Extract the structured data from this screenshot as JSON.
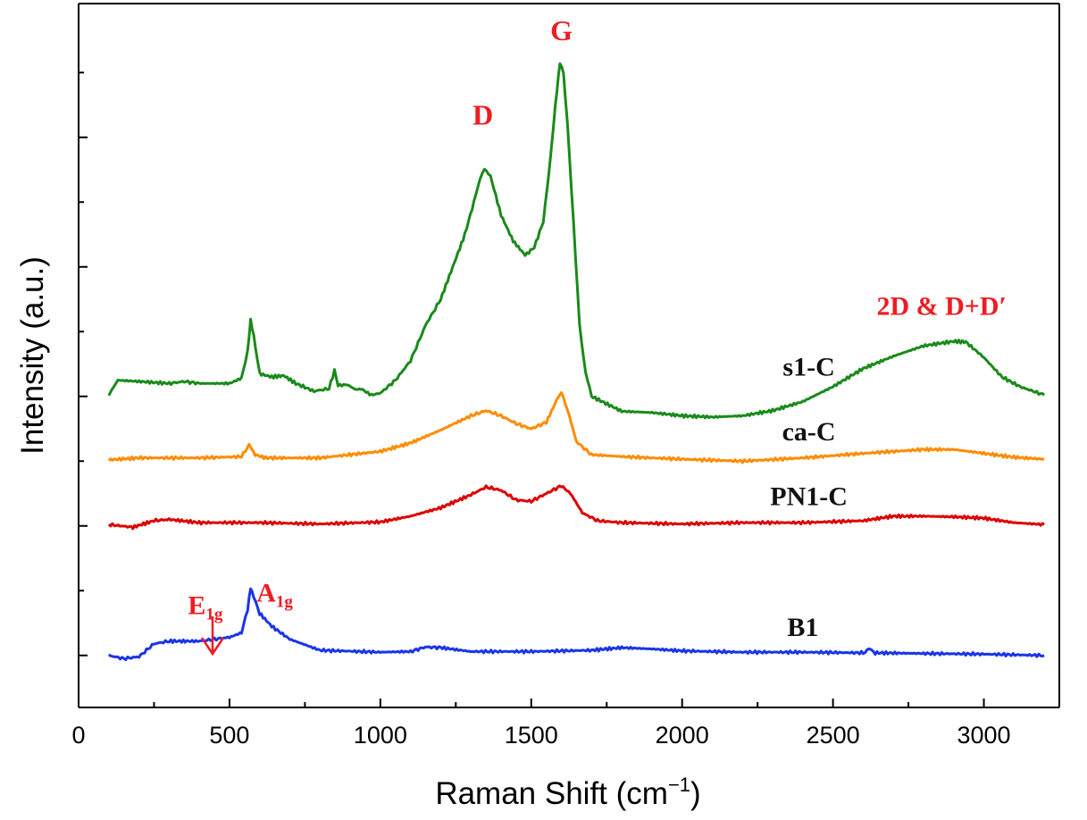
{
  "chart_data": {
    "type": "line",
    "xlabel": "Raman Shift (cm",
    "xlabel_sup": "−1",
    "xlabel_end": ")",
    "ylabel": "Intensity (a.u.)",
    "xlim": [
      0,
      3250
    ],
    "ylim": [
      0,
      1.0
    ],
    "x_ticks": [
      0,
      500,
      1000,
      1500,
      2000,
      2500,
      3000
    ],
    "y_ticks_shown": false,
    "grid": false,
    "legend": "none",
    "series": [
      {
        "name": "s1-C",
        "color": "#1a8a1a",
        "points": [
          [
            100,
            0.452
          ],
          [
            130,
            0.475
          ],
          [
            200,
            0.473
          ],
          [
            300,
            0.47
          ],
          [
            350,
            0.473
          ],
          [
            400,
            0.47
          ],
          [
            500,
            0.47
          ],
          [
            540,
            0.478
          ],
          [
            560,
            0.52
          ],
          [
            570,
            0.567
          ],
          [
            580,
            0.545
          ],
          [
            600,
            0.485
          ],
          [
            640,
            0.48
          ],
          [
            680,
            0.482
          ],
          [
            720,
            0.47
          ],
          [
            780,
            0.458
          ],
          [
            830,
            0.462
          ],
          [
            848,
            0.49
          ],
          [
            860,
            0.467
          ],
          [
            890,
            0.468
          ],
          [
            920,
            0.46
          ],
          [
            935,
            0.462
          ],
          [
            970,
            0.452
          ],
          [
            1000,
            0.455
          ],
          [
            1050,
            0.475
          ],
          [
            1100,
            0.505
          ],
          [
            1150,
            0.56
          ],
          [
            1200,
            0.6
          ],
          [
            1240,
            0.65
          ],
          [
            1280,
            0.7
          ],
          [
            1310,
            0.75
          ],
          [
            1330,
            0.785
          ],
          [
            1345,
            0.802
          ],
          [
            1365,
            0.79
          ],
          [
            1400,
            0.73
          ],
          [
            1440,
            0.69
          ],
          [
            1480,
            0.668
          ],
          [
            1510,
            0.68
          ],
          [
            1540,
            0.72
          ],
          [
            1560,
            0.8
          ],
          [
            1580,
            0.9
          ],
          [
            1595,
            0.965
          ],
          [
            1607,
            0.95
          ],
          [
            1620,
            0.87
          ],
          [
            1640,
            0.72
          ],
          [
            1660,
            0.56
          ],
          [
            1680,
            0.487
          ],
          [
            1700,
            0.45
          ],
          [
            1800,
            0.427
          ],
          [
            1900,
            0.425
          ],
          [
            2000,
            0.42
          ],
          [
            2100,
            0.418
          ],
          [
            2200,
            0.42
          ],
          [
            2300,
            0.428
          ],
          [
            2400,
            0.442
          ],
          [
            2500,
            0.465
          ],
          [
            2600,
            0.493
          ],
          [
            2700,
            0.512
          ],
          [
            2800,
            0.528
          ],
          [
            2900,
            0.535
          ],
          [
            2940,
            0.534
          ],
          [
            3000,
            0.51
          ],
          [
            3060,
            0.48
          ],
          [
            3120,
            0.465
          ],
          [
            3200,
            0.452
          ]
        ]
      },
      {
        "name": "ca-C",
        "color": "#ff8c00",
        "points": [
          [
            100,
            0.352
          ],
          [
            200,
            0.355
          ],
          [
            400,
            0.355
          ],
          [
            540,
            0.357
          ],
          [
            565,
            0.375
          ],
          [
            585,
            0.36
          ],
          [
            620,
            0.355
          ],
          [
            800,
            0.355
          ],
          [
            1000,
            0.365
          ],
          [
            1100,
            0.378
          ],
          [
            1200,
            0.398
          ],
          [
            1300,
            0.42
          ],
          [
            1350,
            0.428
          ],
          [
            1400,
            0.42
          ],
          [
            1450,
            0.408
          ],
          [
            1500,
            0.4
          ],
          [
            1550,
            0.41
          ],
          [
            1590,
            0.45
          ],
          [
            1600,
            0.455
          ],
          [
            1620,
            0.43
          ],
          [
            1650,
            0.38
          ],
          [
            1700,
            0.36
          ],
          [
            1800,
            0.357
          ],
          [
            2000,
            0.353
          ],
          [
            2200,
            0.35
          ],
          [
            2400,
            0.355
          ],
          [
            2600,
            0.362
          ],
          [
            2800,
            0.368
          ],
          [
            2900,
            0.368
          ],
          [
            3000,
            0.362
          ],
          [
            3100,
            0.356
          ],
          [
            3200,
            0.353
          ]
        ]
      },
      {
        "name": "PN1-C",
        "color": "#dd0000",
        "points": [
          [
            100,
            0.252
          ],
          [
            180,
            0.248
          ],
          [
            250,
            0.258
          ],
          [
            300,
            0.26
          ],
          [
            400,
            0.255
          ],
          [
            600,
            0.255
          ],
          [
            800,
            0.253
          ],
          [
            1000,
            0.256
          ],
          [
            1100,
            0.265
          ],
          [
            1200,
            0.278
          ],
          [
            1300,
            0.298
          ],
          [
            1350,
            0.31
          ],
          [
            1400,
            0.305
          ],
          [
            1450,
            0.29
          ],
          [
            1500,
            0.288
          ],
          [
            1550,
            0.3
          ],
          [
            1600,
            0.312
          ],
          [
            1630,
            0.3
          ],
          [
            1670,
            0.27
          ],
          [
            1720,
            0.258
          ],
          [
            1800,
            0.255
          ],
          [
            2000,
            0.253
          ],
          [
            2200,
            0.255
          ],
          [
            2400,
            0.255
          ],
          [
            2600,
            0.258
          ],
          [
            2700,
            0.265
          ],
          [
            2800,
            0.265
          ],
          [
            2900,
            0.264
          ],
          [
            3000,
            0.262
          ],
          [
            3100,
            0.255
          ],
          [
            3200,
            0.252
          ]
        ]
      },
      {
        "name": "B1",
        "color": "#1a35e8",
        "points": [
          [
            100,
            0.05
          ],
          [
            150,
            0.045
          ],
          [
            200,
            0.048
          ],
          [
            250,
            0.068
          ],
          [
            300,
            0.072
          ],
          [
            400,
            0.072
          ],
          [
            450,
            0.075
          ],
          [
            500,
            0.078
          ],
          [
            540,
            0.085
          ],
          [
            560,
            0.12
          ],
          [
            570,
            0.155
          ],
          [
            580,
            0.14
          ],
          [
            600,
            0.115
          ],
          [
            640,
            0.095
          ],
          [
            700,
            0.075
          ],
          [
            800,
            0.058
          ],
          [
            1000,
            0.055
          ],
          [
            1100,
            0.056
          ],
          [
            1150,
            0.063
          ],
          [
            1200,
            0.062
          ],
          [
            1300,
            0.056
          ],
          [
            1500,
            0.056
          ],
          [
            1700,
            0.058
          ],
          [
            1800,
            0.062
          ],
          [
            1900,
            0.06
          ],
          [
            2000,
            0.057
          ],
          [
            2200,
            0.055
          ],
          [
            2400,
            0.055
          ],
          [
            2600,
            0.054
          ],
          [
            2620,
            0.06
          ],
          [
            2640,
            0.054
          ],
          [
            2800,
            0.053
          ],
          [
            3000,
            0.052
          ],
          [
            3200,
            0.05
          ]
        ]
      }
    ],
    "series_labels": [
      {
        "text": "s1-C",
        "x": 2420,
        "y": 0.482
      },
      {
        "text": "ca-C",
        "x": 2420,
        "y": 0.382
      },
      {
        "text": "PN1-C",
        "x": 2420,
        "y": 0.282
      },
      {
        "text": "B1",
        "x": 2400,
        "y": 0.08
      }
    ],
    "annotations": [
      {
        "text": "G",
        "sub": "",
        "x": 1600,
        "y": 1.0,
        "size": 32
      },
      {
        "text": "D",
        "sub": "",
        "x": 1340,
        "y": 0.87,
        "size": 32
      },
      {
        "text": "2D & D+D′",
        "sub": "",
        "x": 2860,
        "y": 0.576,
        "size": 30
      },
      {
        "text": "A",
        "sub": "1g",
        "x": 650,
        "y": 0.133,
        "size": 30
      },
      {
        "text": "E",
        "sub": "1g",
        "x": 420,
        "y": 0.114,
        "size": 30
      }
    ]
  }
}
